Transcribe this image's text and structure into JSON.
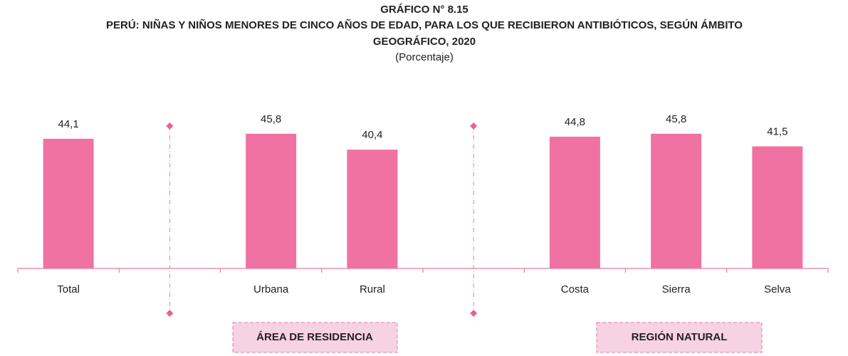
{
  "chart_data": {
    "type": "bar",
    "title": [
      "GRÁFICO N° 8.15",
      "PERÚ: NIÑAS Y NIÑOS MENORES DE CINCO AÑOS DE EDAD, PARA LOS QUE RECIBIERON ANTIBIÓTICOS, SEGÚN ÁMBITO",
      "GEOGRÁFICO, 2020"
    ],
    "subtitle": "(Porcentaje)",
    "categories": [
      "Total",
      null,
      "Urbana",
      "Rural",
      null,
      "Costa",
      "Sierra",
      "Selva"
    ],
    "values": [
      44.1,
      null,
      45.8,
      40.4,
      null,
      44.8,
      45.8,
      41.5
    ],
    "value_labels": [
      "44,1",
      null,
      "45,8",
      "40,4",
      null,
      "44,8",
      "45,8",
      "41,5"
    ],
    "color": "#f072a2",
    "group_labels": [
      "ÁREA DE RESIDENCIA",
      "REGIÓN NATURAL"
    ]
  }
}
